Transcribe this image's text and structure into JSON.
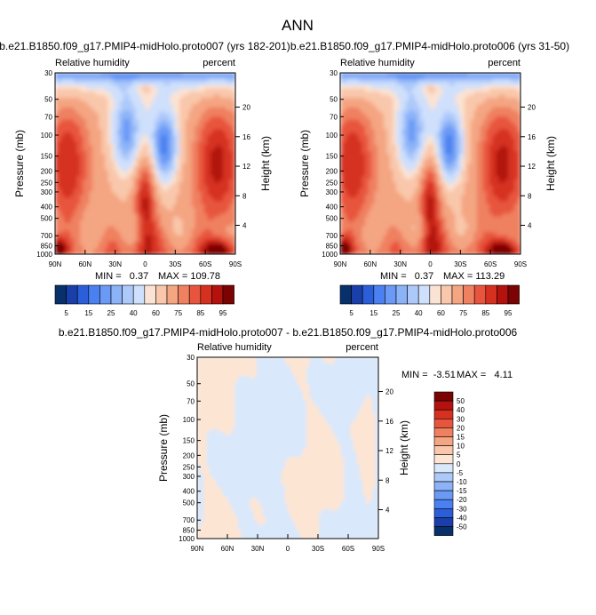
{
  "figure_title": "ANN",
  "colors": {
    "sequential": [
      "#08306b",
      "#1a3fa8",
      "#2b5fd9",
      "#4a80f0",
      "#6a9af6",
      "#8cb2f8",
      "#adc9fa",
      "#cfe0fc",
      "#fbe3d3",
      "#f9c7ab",
      "#f4a582",
      "#ef8060",
      "#e8553e",
      "#d63020",
      "#b3120e",
      "#7a0403"
    ],
    "diverging": [
      "#08306b",
      "#1a3fa8",
      "#2b5fd9",
      "#4a80f0",
      "#6a9af6",
      "#8cb2f8",
      "#adc9fa",
      "#d9e8fb",
      "#fde5d4",
      "#f9c7ab",
      "#f4a582",
      "#ef8060",
      "#e8553e",
      "#d63020",
      "#b3120e",
      "#7a0403"
    ]
  },
  "chart_data": [
    {
      "type": "heatmap",
      "title": "b.e21.B1850.f09_g17.PMIP4-midHolo.proto007 (yrs 182-201)",
      "left_label": "Relative humidity",
      "right_label": "percent",
      "ylabel": "Pressure (mb)",
      "y2label": "Height (km)",
      "x_ticks": [
        "90N",
        "60N",
        "30N",
        "0",
        "30S",
        "60S",
        "90S"
      ],
      "y_ticks": [
        "30",
        "50",
        "70",
        "100",
        "150",
        "200",
        "250",
        "300",
        "400",
        "500",
        "700",
        "850",
        "1000"
      ],
      "y2_ticks": [
        "20",
        "16",
        "12",
        "8",
        "4"
      ],
      "min_text": "MIN =   0.37",
      "max_text": "MAX = 109.78",
      "colorbar_labels": [
        "5",
        "15",
        "25",
        "40",
        "60",
        "75",
        "85",
        "95"
      ]
    },
    {
      "type": "heatmap",
      "title": "b.e21.B1850.f09_g17.PMIP4-midHolo.proto006 (yrs 31-50)",
      "left_label": "Relative humidity",
      "right_label": "percent",
      "ylabel": "Pressure (mb)",
      "y2label": "Height (km)",
      "x_ticks": [
        "90N",
        "60N",
        "30N",
        "0",
        "30S",
        "60S",
        "90S"
      ],
      "y_ticks": [
        "30",
        "50",
        "70",
        "100",
        "150",
        "200",
        "250",
        "300",
        "400",
        "500",
        "700",
        "850",
        "1000"
      ],
      "y2_ticks": [
        "20",
        "16",
        "12",
        "8",
        "4"
      ],
      "min_text": "MIN =   0.37",
      "max_text": "MAX = 113.29",
      "colorbar_labels": [
        "5",
        "15",
        "25",
        "40",
        "60",
        "75",
        "85",
        "95"
      ]
    },
    {
      "type": "heatmap",
      "title": "b.e21.B1850.f09_g17.PMIP4-midHolo.proto007 - b.e21.B1850.f09_g17.PMIP4-midHolo.proto006",
      "left_label": "Relative humidity",
      "right_label": "percent",
      "ylabel": "Pressure (mb)",
      "y2label": "Height (km)",
      "x_ticks": [
        "90N",
        "60N",
        "30N",
        "0",
        "30S",
        "60S",
        "90S"
      ],
      "y_ticks": [
        "30",
        "50",
        "70",
        "100",
        "150",
        "200",
        "250",
        "300",
        "400",
        "500",
        "700",
        "850",
        "1000"
      ],
      "y2_ticks": [
        "20",
        "16",
        "12",
        "8",
        "4"
      ],
      "min_text": "MIN =  -3.51",
      "max_text": "MAX =   4.11",
      "colorbar_labels": [
        "50",
        "40",
        "30",
        "20",
        "15",
        "10",
        "5",
        "0",
        "-5",
        "-10",
        "-15",
        "-20",
        "-30",
        "-40",
        "-50"
      ]
    }
  ]
}
